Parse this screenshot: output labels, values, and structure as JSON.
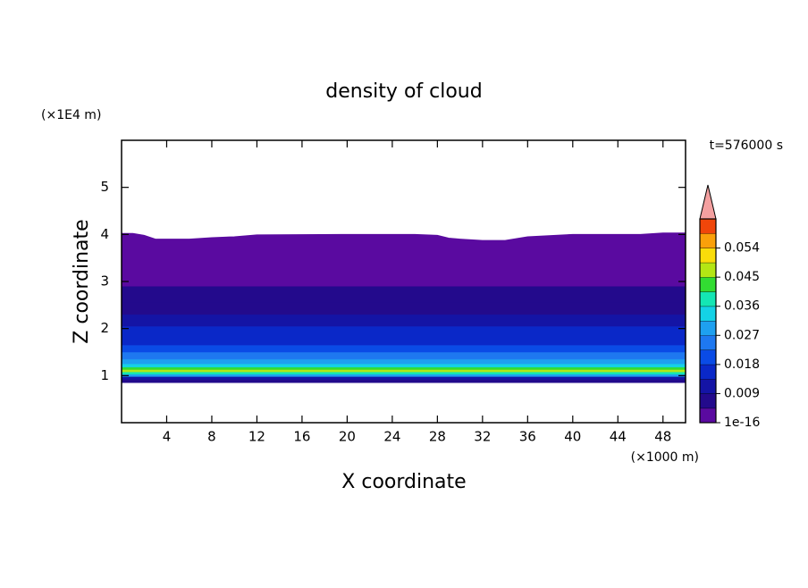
{
  "chart_data": {
    "type": "contour",
    "title": "density of cloud",
    "xlabel": "X coordinate",
    "ylabel": "Z coordinate",
    "xunit": "(×1000 m)",
    "yunit": "(×1E4 m)",
    "time_label": "t=576000 s",
    "xlim": [
      0,
      50
    ],
    "ylim": [
      0,
      6
    ],
    "xticks": [
      4,
      8,
      12,
      16,
      20,
      24,
      28,
      32,
      36,
      40,
      44,
      48
    ],
    "yticks": [
      1,
      2,
      3,
      4,
      5
    ],
    "z_edges": [
      0.85,
      0.92,
      0.98,
      1.03,
      1.08,
      1.13,
      1.18,
      1.25,
      1.35,
      1.5,
      1.65,
      1.85,
      2.05,
      2.3,
      2.55,
      2.9,
      4.1
    ],
    "values": [
      0.006,
      0.012,
      0.03,
      0.04,
      0.048,
      0.042,
      0.033,
      0.028,
      0.024,
      0.021,
      0.017,
      0.014,
      0.01,
      0.007,
      0.005,
      0.002
    ],
    "cloud_top": {
      "x": [
        0,
        1,
        2,
        3,
        6,
        8,
        10,
        12,
        20,
        26,
        28,
        29,
        30,
        32,
        34,
        36,
        40,
        46,
        48,
        50
      ],
      "z": [
        4.02,
        4.02,
        3.98,
        3.9,
        3.9,
        3.93,
        3.95,
        3.99,
        4.0,
        4.0,
        3.98,
        3.92,
        3.9,
        3.87,
        3.87,
        3.95,
        4.0,
        4.0,
        4.03,
        4.03
      ]
    },
    "levels": [
      1e-16,
      0.0045,
      0.009,
      0.0135,
      0.018,
      0.0225,
      0.027,
      0.0315,
      0.036,
      0.0405,
      0.045,
      0.0495,
      0.054,
      0.0585,
      0.063
    ],
    "colors": [
      "#5a0aa0",
      "#230a8c",
      "#1414a5",
      "#0a28c8",
      "#0a4be6",
      "#1e78f0",
      "#1ea0f0",
      "#14d2e6",
      "#14e6b4",
      "#32dc32",
      "#b4e614",
      "#fadc0a",
      "#faa00a",
      "#f0460a"
    ],
    "extend_color": "#f4a0a0",
    "colorbar_ticks": [
      1e-16,
      0.009,
      0.018,
      0.027,
      0.036,
      0.045,
      0.054
    ]
  }
}
